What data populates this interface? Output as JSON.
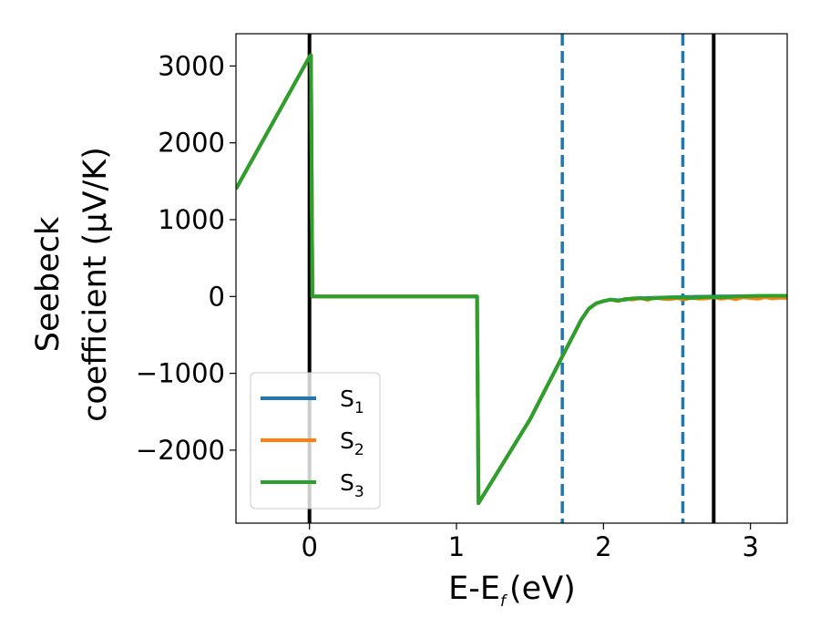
{
  "chart_data": {
    "type": "line",
    "xlabel": "E-E",
    "xlabel_sub": "f",
    "xlabel_unit": "(eV)",
    "ylabel_line1": "Seebeck",
    "ylabel_line2": "coefficient  (μV/K)",
    "xlim": [
      -0.5,
      3.25
    ],
    "ylim": [
      -2950,
      3420
    ],
    "xticks": [
      0,
      1,
      2,
      3
    ],
    "xtick_labels": [
      "0",
      "1",
      "2",
      "3"
    ],
    "yticks": [
      3000,
      2000,
      1000,
      0,
      -1000,
      -2000
    ],
    "ytick_labels": [
      "3000",
      "2000",
      "1000",
      "0",
      "−1000",
      "−2000"
    ],
    "grid": false,
    "legend_position": "lower-left",
    "series": [
      {
        "name": "S",
        "sub": "1",
        "color": "#1f77b4",
        "x": [
          -0.5,
          0.0,
          0.01,
          0.02,
          1.1,
          1.14,
          1.15,
          1.5,
          1.72,
          1.85,
          1.9,
          1.95,
          2.0,
          2.05,
          2.1,
          2.2,
          2.3,
          2.45,
          2.6,
          2.8,
          3.0,
          3.25
        ],
        "y": [
          1400,
          3120,
          3140,
          0,
          0,
          0,
          -2690,
          -1600,
          -780,
          -300,
          -160,
          -90,
          -60,
          -40,
          -50,
          -30,
          -20,
          -10,
          -5,
          0,
          5,
          10
        ]
      },
      {
        "name": "S",
        "sub": "2",
        "color": "#ff7f0e",
        "x": [
          -0.5,
          0.0,
          0.01,
          0.02,
          1.1,
          1.14,
          1.15,
          1.5,
          1.72,
          1.85,
          1.9,
          1.95,
          2.0,
          2.05,
          2.1,
          2.15,
          2.2,
          2.25,
          2.3,
          2.35,
          2.4,
          2.45,
          2.5,
          2.55,
          2.6,
          2.65,
          2.7,
          2.75,
          2.8,
          2.85,
          2.9,
          2.95,
          3.0,
          3.05,
          3.1,
          3.15,
          3.2,
          3.25
        ],
        "y": [
          1400,
          3120,
          3140,
          0,
          0,
          0,
          -2690,
          -1600,
          -780,
          -300,
          -160,
          -90,
          -60,
          -40,
          -60,
          -30,
          -40,
          -20,
          -45,
          -15,
          -30,
          -35,
          -20,
          -40,
          -15,
          -30,
          -25,
          -10,
          -30,
          -15,
          -35,
          -10,
          -20,
          -30,
          -10,
          -25,
          -15,
          -20
        ]
      },
      {
        "name": "S",
        "sub": "3",
        "color": "#2ca02c",
        "x": [
          -0.5,
          0.0,
          0.01,
          0.02,
          1.1,
          1.14,
          1.15,
          1.5,
          1.72,
          1.85,
          1.9,
          1.95,
          2.0,
          2.05,
          2.1,
          2.15,
          2.2,
          2.25,
          2.3,
          2.4,
          2.5,
          2.6,
          2.7,
          2.8,
          2.9,
          3.0,
          3.1,
          3.25
        ],
        "y": [
          1400,
          3120,
          3140,
          0,
          0,
          0,
          -2690,
          -1600,
          -780,
          -300,
          -160,
          -90,
          -60,
          -40,
          -55,
          -35,
          -25,
          -20,
          -30,
          -15,
          -10,
          -20,
          -5,
          -10,
          0,
          5,
          10,
          10
        ]
      }
    ],
    "vlines": [
      {
        "x": 0.0,
        "style": "solid",
        "color": "#000000"
      },
      {
        "x": 2.75,
        "style": "solid",
        "color": "#000000"
      },
      {
        "x": 1.72,
        "style": "dashed",
        "color": "#1f77b4"
      },
      {
        "x": 2.54,
        "style": "dashed",
        "color": "#1f77b4"
      }
    ]
  }
}
